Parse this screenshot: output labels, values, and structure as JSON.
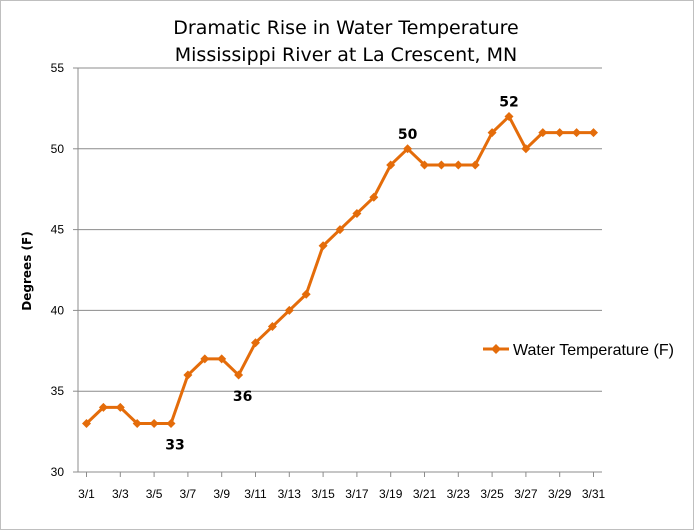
{
  "chart_data": {
    "type": "line",
    "title": [
      "Dramatic Rise in Water Temperature",
      "Mississippi River at La Crescent, MN"
    ],
    "ylabel": "Degrees (F)",
    "xlabel": "",
    "ylim": [
      30,
      55
    ],
    "yticks": [
      30,
      35,
      40,
      45,
      50,
      55
    ],
    "grid": true,
    "legend_position": "right",
    "x_tick_labels": [
      "3/1",
      "3/3",
      "3/5",
      "3/7",
      "3/9",
      "3/11",
      "3/13",
      "3/15",
      "3/17",
      "3/19",
      "3/21",
      "3/23",
      "3/25",
      "3/27",
      "3/29",
      "3/31"
    ],
    "x": [
      "3/1",
      "3/2",
      "3/3",
      "3/4",
      "3/5",
      "3/6",
      "3/7",
      "3/8",
      "3/9",
      "3/10",
      "3/11",
      "3/12",
      "3/13",
      "3/14",
      "3/15",
      "3/16",
      "3/17",
      "3/18",
      "3/19",
      "3/20",
      "3/21",
      "3/22",
      "3/23",
      "3/24",
      "3/25",
      "3/26",
      "3/27",
      "3/28",
      "3/29",
      "3/30",
      "3/31"
    ],
    "series": [
      {
        "name": "Water Temperature (F)",
        "color": "#e46c0a",
        "values": [
          33,
          34,
          34,
          33,
          33,
          33,
          36,
          37,
          37,
          36,
          38,
          39,
          40,
          41,
          44,
          45,
          46,
          47,
          49,
          50,
          49,
          49,
          49,
          49,
          51,
          52,
          50,
          51,
          51,
          51,
          51
        ]
      }
    ],
    "annotations": [
      {
        "text": "33",
        "x": "3/6"
      },
      {
        "text": "36",
        "x": "3/10"
      },
      {
        "text": "50",
        "x": "3/20"
      },
      {
        "text": "52",
        "x": "3/26"
      }
    ]
  }
}
